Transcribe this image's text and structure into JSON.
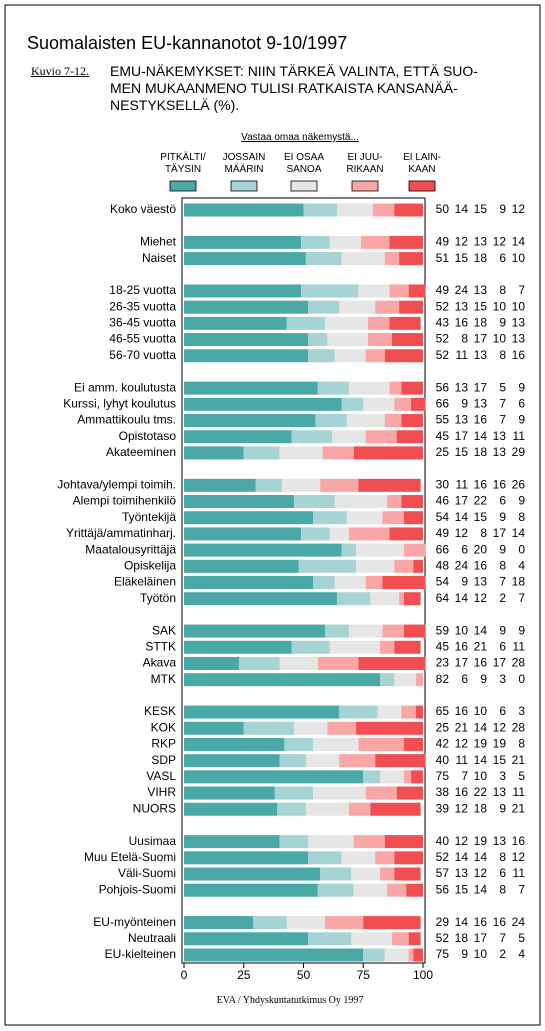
{
  "chart_data": {
    "type": "stacked-bar-horizontal",
    "title": "Suomalaisten EU-kannanotot 9-10/1997",
    "figure_label": "Kuvio 7-12.",
    "subtitle": "EMU-NÄKEMYKSET: NIIN TÄRKEÄ VALINTA, ETTÄ SUO-\nMEN MUKAANMENO TULISI RATKAISTA KANSANÄÄ-\nNESTYKSELLÄ (%).",
    "legend_title": "Vastaa omaa näkemystä...",
    "source": "EVA / Yhdyskuntatutkimus Oy 1997",
    "xlim": [
      0,
      100
    ],
    "xticks": [
      0,
      25,
      50,
      75,
      100
    ],
    "categories": [
      "Koko väestö",
      null,
      "Miehet",
      "Naiset",
      null,
      "18-25 vuotta",
      "26-35 vuotta",
      "36-45 vuotta",
      "46-55 vuotta",
      "56-70 vuotta",
      null,
      "Ei amm. koulutusta",
      "Kurssi, lyhyt koulutus",
      "Ammattikoulu tms.",
      "Opistotaso",
      "Akateeminen",
      null,
      "Johtava/ylempi toimih.",
      "Alempi toimihenkilö",
      "Työntekijä",
      "Yrittäjä/ammatinharj.",
      "Maatalousyrittäjä",
      "Opiskelija",
      "Eläkeläinen",
      "Työtön",
      null,
      "SAK",
      "STTK",
      "Akava",
      "MTK",
      null,
      "KESK",
      "KOK",
      "RKP",
      "SDP",
      "VASL",
      "VIHR",
      "NUORS",
      null,
      "Uusimaa",
      "Muu Etelä-Suomi",
      "Väli-Suomi",
      "Pohjois-Suomi",
      null,
      "EU-myönteinen",
      "Neutraali",
      "EU-kielteinen"
    ],
    "series": [
      {
        "name": "PITKÄLTI/\nTÄYSIN",
        "color": "#4aa9a6",
        "values": [
          50,
          null,
          49,
          51,
          null,
          49,
          52,
          43,
          52,
          52,
          null,
          56,
          66,
          55,
          45,
          25,
          null,
          30,
          46,
          54,
          49,
          66,
          48,
          54,
          64,
          null,
          59,
          45,
          23,
          82,
          null,
          65,
          25,
          42,
          40,
          75,
          38,
          39,
          null,
          40,
          52,
          57,
          56,
          null,
          29,
          52,
          75
        ]
      },
      {
        "name": "JOSSAIN\nMÄÄRIN",
        "color": "#a6d3d3",
        "values": [
          14,
          null,
          12,
          15,
          null,
          24,
          13,
          16,
          8,
          11,
          null,
          13,
          9,
          13,
          17,
          15,
          null,
          11,
          17,
          14,
          12,
          6,
          24,
          9,
          14,
          null,
          10,
          16,
          17,
          6,
          null,
          16,
          21,
          12,
          11,
          7,
          16,
          12,
          null,
          12,
          14,
          13,
          15,
          null,
          14,
          18,
          9
        ]
      },
      {
        "name": "EI OSAA\nSANOA",
        "color": "#e6e6e6",
        "values": [
          15,
          null,
          13,
          18,
          null,
          13,
          15,
          18,
          17,
          13,
          null,
          17,
          13,
          16,
          14,
          18,
          null,
          16,
          22,
          15,
          8,
          20,
          16,
          13,
          12,
          null,
          14,
          21,
          16,
          9,
          null,
          10,
          14,
          19,
          14,
          10,
          22,
          18,
          null,
          19,
          14,
          12,
          14,
          null,
          16,
          17,
          10
        ]
      },
      {
        "name": "EI JUU-\nRIKAAN",
        "color": "#f8a6a6",
        "values": [
          9,
          null,
          12,
          6,
          null,
          8,
          10,
          9,
          10,
          8,
          null,
          5,
          7,
          7,
          13,
          13,
          null,
          16,
          6,
          9,
          17,
          9,
          8,
          7,
          2,
          null,
          9,
          6,
          17,
          3,
          null,
          6,
          12,
          19,
          15,
          3,
          13,
          9,
          null,
          13,
          8,
          6,
          8,
          null,
          16,
          7,
          2
        ]
      },
      {
        "name": "EI LAIN-\nKAAN",
        "color": "#f04e50",
        "values": [
          12,
          null,
          14,
          10,
          null,
          7,
          10,
          13,
          13,
          16,
          null,
          9,
          6,
          9,
          11,
          29,
          null,
          26,
          9,
          8,
          14,
          0,
          4,
          18,
          7,
          null,
          9,
          11,
          28,
          0,
          null,
          3,
          28,
          8,
          21,
          5,
          11,
          21,
          null,
          16,
          12,
          11,
          7,
          null,
          24,
          5,
          4
        ]
      }
    ]
  }
}
